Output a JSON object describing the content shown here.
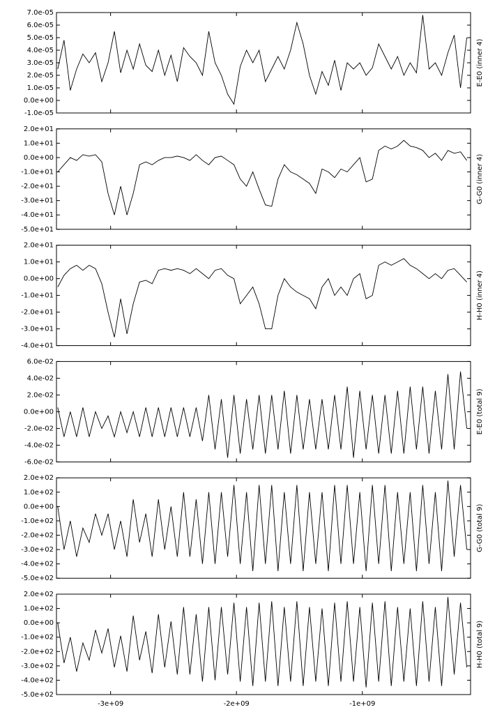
{
  "chart_data": [
    {
      "type": "line",
      "ylabel": "E-E0 (inner 4)",
      "color": "#000000",
      "x": [
        -3420000000.0,
        -3370000000.0,
        -3320000000.0,
        -3270000000.0,
        -3220000000.0,
        -3170000000.0,
        -3120000000.0,
        -3070000000.0,
        -3020000000.0,
        -2970000000.0,
        -2920000000.0,
        -2870000000.0,
        -2820000000.0,
        -2770000000.0,
        -2720000000.0,
        -2670000000.0,
        -2620000000.0,
        -2570000000.0,
        -2520000000.0,
        -2470000000.0,
        -2420000000.0,
        -2370000000.0,
        -2320000000.0,
        -2270000000.0,
        -2220000000.0,
        -2170000000.0,
        -2120000000.0,
        -2070000000.0,
        -2020000000.0,
        -1970000000.0,
        -1920000000.0,
        -1870000000.0,
        -1820000000.0,
        -1770000000.0,
        -1720000000.0,
        -1670000000.0,
        -1620000000.0,
        -1570000000.0,
        -1520000000.0,
        -1470000000.0,
        -1420000000.0,
        -1370000000.0,
        -1320000000.0,
        -1270000000.0,
        -1220000000.0,
        -1170000000.0,
        -1120000000.0,
        -1070000000.0,
        -1020000000.0,
        -970000000.0,
        -920000000.0,
        -870000000.0,
        -820000000.0,
        -770000000.0,
        -720000000.0,
        -670000000.0,
        -620000000.0,
        -570000000.0,
        -520000000.0,
        -470000000.0,
        -420000000.0,
        -370000000.0,
        -320000000.0,
        -270000000.0,
        -220000000.0,
        -170000000.0
      ],
      "values": [
        2.5e-05,
        4.8e-05,
        8e-06,
        2.5e-05,
        3.7e-05,
        3e-05,
        3.8e-05,
        1.5e-05,
        3e-05,
        5.5e-05,
        2.2e-05,
        4e-05,
        2.5e-05,
        4.5e-05,
        2.8e-05,
        2.3e-05,
        4e-05,
        2e-05,
        3.6e-05,
        1.5e-05,
        4.2e-05,
        3.5e-05,
        3e-05,
        2e-05,
        5.5e-05,
        3e-05,
        2e-05,
        5e-06,
        -3e-06,
        2.7e-05,
        4e-05,
        3e-05,
        4e-05,
        1.5e-05,
        2.5e-05,
        3.5e-05,
        2.5e-05,
        4e-05,
        6.2e-05,
        4.5e-05,
        2e-05,
        5e-06,
        2.3e-05,
        1.2e-05,
        3.2e-05,
        8e-06,
        3e-05,
        2.5e-05,
        3e-05,
        2e-05,
        2.6e-05,
        4.5e-05,
        3.5e-05,
        2.5e-05,
        3.5e-05,
        2e-05,
        3e-05,
        2.2e-05,
        6.8e-05,
        2.5e-05,
        3e-05,
        2e-05,
        3.8e-05,
        5.2e-05,
        1e-05,
        5e-05
      ],
      "xlim": [
        -3430000000.0,
        -140000000.0
      ],
      "ylim": [
        -1e-05,
        7e-05
      ],
      "yticks": [
        {
          "value": -1e-05,
          "label": "-1.0e-05"
        },
        {
          "value": 0,
          "label": "0.0e+00"
        },
        {
          "value": 1e-05,
          "label": "1.0e-05"
        },
        {
          "value": 2e-05,
          "label": "2.0e-05"
        },
        {
          "value": 3e-05,
          "label": "3.0e-05"
        },
        {
          "value": 4e-05,
          "label": "4.0e-05"
        },
        {
          "value": 5e-05,
          "label": "5.0e-05"
        },
        {
          "value": 6e-05,
          "label": "6.0e-05"
        },
        {
          "value": 7e-05,
          "label": "7.0e-05"
        }
      ]
    },
    {
      "type": "line",
      "ylabel": "G-G0 (inner 4)",
      "color": "#000000",
      "x": [
        -3420000000.0,
        -3370000000.0,
        -3320000000.0,
        -3270000000.0,
        -3220000000.0,
        -3170000000.0,
        -3120000000.0,
        -3070000000.0,
        -3020000000.0,
        -2970000000.0,
        -2920000000.0,
        -2870000000.0,
        -2820000000.0,
        -2770000000.0,
        -2720000000.0,
        -2670000000.0,
        -2620000000.0,
        -2570000000.0,
        -2520000000.0,
        -2470000000.0,
        -2420000000.0,
        -2370000000.0,
        -2320000000.0,
        -2270000000.0,
        -2220000000.0,
        -2170000000.0,
        -2120000000.0,
        -2070000000.0,
        -2020000000.0,
        -1970000000.0,
        -1920000000.0,
        -1870000000.0,
        -1820000000.0,
        -1770000000.0,
        -1720000000.0,
        -1670000000.0,
        -1620000000.0,
        -1570000000.0,
        -1520000000.0,
        -1470000000.0,
        -1420000000.0,
        -1370000000.0,
        -1320000000.0,
        -1270000000.0,
        -1220000000.0,
        -1170000000.0,
        -1120000000.0,
        -1070000000.0,
        -1020000000.0,
        -970000000.0,
        -920000000.0,
        -870000000.0,
        -820000000.0,
        -770000000.0,
        -720000000.0,
        -670000000.0,
        -620000000.0,
        -570000000.0,
        -520000000.0,
        -470000000.0,
        -420000000.0,
        -370000000.0,
        -320000000.0,
        -270000000.0,
        -220000000.0,
        -170000000.0
      ],
      "values": [
        -10,
        -5,
        0,
        -2,
        2,
        1,
        2,
        -3,
        -25,
        -40,
        -20,
        -40,
        -25,
        -5,
        -3,
        -5,
        -2,
        0,
        0,
        1,
        0,
        -2,
        2,
        -2,
        -5,
        0,
        1,
        -2,
        -5,
        -15,
        -20,
        -10,
        -22,
        -33,
        -34,
        -15,
        -5,
        -10,
        -12,
        -15,
        -18,
        -25,
        -8,
        -10,
        -14,
        -8,
        -10,
        -5,
        0,
        -17,
        -15,
        5,
        8,
        6,
        8,
        12,
        8,
        7,
        5,
        0,
        3,
        -2,
        5,
        3,
        4,
        -2
      ],
      "xlim": [
        -3430000000.0,
        -140000000.0
      ],
      "ylim": [
        -50,
        20
      ],
      "yticks": [
        {
          "value": -50,
          "label": "-5.0e+01"
        },
        {
          "value": -40,
          "label": "-4.0e+01"
        },
        {
          "value": -30,
          "label": "-3.0e+01"
        },
        {
          "value": -20,
          "label": "-2.0e+01"
        },
        {
          "value": -10,
          "label": "-1.0e+01"
        },
        {
          "value": 0,
          "label": "0.0e+00"
        },
        {
          "value": 10,
          "label": "1.0e+01"
        },
        {
          "value": 20,
          "label": "2.0e+01"
        }
      ]
    },
    {
      "type": "line",
      "ylabel": "H-H0 (inner 4)",
      "color": "#000000",
      "x": [
        -3420000000.0,
        -3370000000.0,
        -3320000000.0,
        -3270000000.0,
        -3220000000.0,
        -3170000000.0,
        -3120000000.0,
        -3070000000.0,
        -3020000000.0,
        -2970000000.0,
        -2920000000.0,
        -2870000000.0,
        -2820000000.0,
        -2770000000.0,
        -2720000000.0,
        -2670000000.0,
        -2620000000.0,
        -2570000000.0,
        -2520000000.0,
        -2470000000.0,
        -2420000000.0,
        -2370000000.0,
        -2320000000.0,
        -2270000000.0,
        -2220000000.0,
        -2170000000.0,
        -2120000000.0,
        -2070000000.0,
        -2020000000.0,
        -1970000000.0,
        -1920000000.0,
        -1870000000.0,
        -1820000000.0,
        -1770000000.0,
        -1720000000.0,
        -1670000000.0,
        -1620000000.0,
        -1570000000.0,
        -1520000000.0,
        -1470000000.0,
        -1420000000.0,
        -1370000000.0,
        -1320000000.0,
        -1270000000.0,
        -1220000000.0,
        -1170000000.0,
        -1120000000.0,
        -1070000000.0,
        -1020000000.0,
        -970000000.0,
        -920000000.0,
        -870000000.0,
        -820000000.0,
        -770000000.0,
        -720000000.0,
        -670000000.0,
        -620000000.0,
        -570000000.0,
        -520000000.0,
        -470000000.0,
        -420000000.0,
        -370000000.0,
        -320000000.0,
        -270000000.0,
        -220000000.0,
        -170000000.0
      ],
      "values": [
        -5,
        2,
        6,
        8,
        5,
        8,
        6,
        -3,
        -20,
        -35,
        -12,
        -33,
        -15,
        -2,
        -1,
        -3,
        5,
        6,
        5,
        6,
        5,
        3,
        6,
        3,
        0,
        5,
        6,
        2,
        0,
        -15,
        -10,
        -5,
        -15,
        -30,
        -30,
        -10,
        0,
        -5,
        -8,
        -10,
        -12,
        -18,
        -5,
        0,
        -10,
        -5,
        -10,
        0,
        3,
        -12,
        -10,
        8,
        10,
        8,
        10,
        12,
        8,
        6,
        3,
        0,
        3,
        0,
        5,
        6,
        2,
        -2
      ],
      "xlim": [
        -3430000000.0,
        -140000000.0
      ],
      "ylim": [
        -40,
        20
      ],
      "yticks": [
        {
          "value": -40,
          "label": "-4.0e+01"
        },
        {
          "value": -30,
          "label": "-3.0e+01"
        },
        {
          "value": -20,
          "label": "-2.0e+01"
        },
        {
          "value": -10,
          "label": "-1.0e+01"
        },
        {
          "value": 0,
          "label": "0.0e+00"
        },
        {
          "value": 10,
          "label": "1.0e+01"
        },
        {
          "value": 20,
          "label": "2.0e+01"
        }
      ]
    },
    {
      "type": "line",
      "ylabel": "E-E0 (total 9)",
      "color": "#000000",
      "x": [
        -3420000000.0,
        -3370000000.0,
        -3320000000.0,
        -3270000000.0,
        -3220000000.0,
        -3170000000.0,
        -3120000000.0,
        -3070000000.0,
        -3020000000.0,
        -2970000000.0,
        -2920000000.0,
        -2870000000.0,
        -2820000000.0,
        -2770000000.0,
        -2720000000.0,
        -2670000000.0,
        -2620000000.0,
        -2570000000.0,
        -2520000000.0,
        -2470000000.0,
        -2420000000.0,
        -2370000000.0,
        -2320000000.0,
        -2270000000.0,
        -2220000000.0,
        -2170000000.0,
        -2120000000.0,
        -2070000000.0,
        -2020000000.0,
        -1970000000.0,
        -1920000000.0,
        -1870000000.0,
        -1820000000.0,
        -1770000000.0,
        -1720000000.0,
        -1670000000.0,
        -1620000000.0,
        -1570000000.0,
        -1520000000.0,
        -1470000000.0,
        -1420000000.0,
        -1370000000.0,
        -1320000000.0,
        -1270000000.0,
        -1220000000.0,
        -1170000000.0,
        -1120000000.0,
        -1070000000.0,
        -1020000000.0,
        -970000000.0,
        -920000000.0,
        -870000000.0,
        -820000000.0,
        -770000000.0,
        -720000000.0,
        -670000000.0,
        -620000000.0,
        -570000000.0,
        -520000000.0,
        -470000000.0,
        -420000000.0,
        -370000000.0,
        -320000000.0,
        -270000000.0,
        -220000000.0,
        -170000000.0
      ],
      "values": [
        0.005,
        -0.03,
        0.0,
        -0.03,
        0.005,
        -0.03,
        0.0,
        -0.02,
        -0.005,
        -0.03,
        0.0,
        -0.025,
        0.0,
        -0.03,
        0.005,
        -0.03,
        0.005,
        -0.03,
        0.005,
        -0.03,
        0.005,
        -0.03,
        0.005,
        -0.035,
        0.02,
        -0.045,
        0.015,
        -0.055,
        0.02,
        -0.05,
        0.015,
        -0.045,
        0.02,
        -0.05,
        0.02,
        -0.045,
        0.025,
        -0.05,
        0.02,
        -0.045,
        0.015,
        -0.045,
        0.015,
        -0.045,
        0.02,
        -0.045,
        0.03,
        -0.055,
        0.025,
        -0.045,
        0.02,
        -0.05,
        0.02,
        -0.05,
        0.025,
        -0.05,
        0.03,
        -0.045,
        0.03,
        -0.05,
        0.025,
        -0.045,
        0.045,
        -0.045,
        0.048,
        -0.02
      ],
      "xlim": [
        -3430000000.0,
        -140000000.0
      ],
      "ylim": [
        -0.06,
        0.06
      ],
      "yticks": [
        {
          "value": -0.06,
          "label": "-6.0e-02"
        },
        {
          "value": -0.04,
          "label": "-4.0e-02"
        },
        {
          "value": -0.02,
          "label": "-2.0e-02"
        },
        {
          "value": 0,
          "label": "0.0e+00"
        },
        {
          "value": 0.02,
          "label": "2.0e-02"
        },
        {
          "value": 0.04,
          "label": "4.0e-02"
        },
        {
          "value": 0.06,
          "label": "6.0e-02"
        }
      ]
    },
    {
      "type": "line",
      "ylabel": "G-G0 (total 9)",
      "color": "#000000",
      "x": [
        -3420000000.0,
        -3370000000.0,
        -3320000000.0,
        -3270000000.0,
        -3220000000.0,
        -3170000000.0,
        -3120000000.0,
        -3070000000.0,
        -3020000000.0,
        -2970000000.0,
        -2920000000.0,
        -2870000000.0,
        -2820000000.0,
        -2770000000.0,
        -2720000000.0,
        -2670000000.0,
        -2620000000.0,
        -2570000000.0,
        -2520000000.0,
        -2470000000.0,
        -2420000000.0,
        -2370000000.0,
        -2320000000.0,
        -2270000000.0,
        -2220000000.0,
        -2170000000.0,
        -2120000000.0,
        -2070000000.0,
        -2020000000.0,
        -1970000000.0,
        -1920000000.0,
        -1870000000.0,
        -1820000000.0,
        -1770000000.0,
        -1720000000.0,
        -1670000000.0,
        -1620000000.0,
        -1570000000.0,
        -1520000000.0,
        -1470000000.0,
        -1420000000.0,
        -1370000000.0,
        -1320000000.0,
        -1270000000.0,
        -1220000000.0,
        -1170000000.0,
        -1120000000.0,
        -1070000000.0,
        -1020000000.0,
        -970000000.0,
        -920000000.0,
        -870000000.0,
        -820000000.0,
        -770000000.0,
        -720000000.0,
        -670000000.0,
        -620000000.0,
        -570000000.0,
        -520000000.0,
        -470000000.0,
        -420000000.0,
        -370000000.0,
        -320000000.0,
        -270000000.0,
        -220000000.0,
        -170000000.0
      ],
      "values": [
        0,
        -300,
        -100,
        -350,
        -150,
        -250,
        -50,
        -200,
        -50,
        -300,
        -100,
        -350,
        50,
        -250,
        -50,
        -350,
        50,
        -300,
        0,
        -350,
        100,
        -350,
        50,
        -400,
        100,
        -400,
        100,
        -350,
        150,
        -400,
        100,
        -450,
        150,
        -400,
        150,
        -450,
        100,
        -400,
        150,
        -450,
        100,
        -400,
        100,
        -450,
        150,
        -400,
        150,
        -400,
        100,
        -450,
        150,
        -400,
        150,
        -450,
        100,
        -400,
        100,
        -450,
        150,
        -400,
        100,
        -450,
        180,
        -350,
        150,
        -300
      ],
      "xlim": [
        -3430000000.0,
        -140000000.0
      ],
      "ylim": [
        -500,
        200
      ],
      "yticks": [
        {
          "value": -500,
          "label": "-5.0e+02"
        },
        {
          "value": -400,
          "label": "-4.0e+02"
        },
        {
          "value": -300,
          "label": "-3.0e+02"
        },
        {
          "value": -200,
          "label": "-2.0e+02"
        },
        {
          "value": -100,
          "label": "-1.0e+02"
        },
        {
          "value": 0,
          "label": "0.0e+00"
        },
        {
          "value": 100,
          "label": "1.0e+02"
        },
        {
          "value": 200,
          "label": "2.0e+02"
        }
      ]
    },
    {
      "type": "line",
      "ylabel": "H-H0 (total 9)",
      "color": "#000000",
      "x": [
        -3420000000.0,
        -3370000000.0,
        -3320000000.0,
        -3270000000.0,
        -3220000000.0,
        -3170000000.0,
        -3120000000.0,
        -3070000000.0,
        -3020000000.0,
        -2970000000.0,
        -2920000000.0,
        -2870000000.0,
        -2820000000.0,
        -2770000000.0,
        -2720000000.0,
        -2670000000.0,
        -2620000000.0,
        -2570000000.0,
        -2520000000.0,
        -2470000000.0,
        -2420000000.0,
        -2370000000.0,
        -2320000000.0,
        -2270000000.0,
        -2220000000.0,
        -2170000000.0,
        -2120000000.0,
        -2070000000.0,
        -2020000000.0,
        -1970000000.0,
        -1920000000.0,
        -1870000000.0,
        -1820000000.0,
        -1770000000.0,
        -1720000000.0,
        -1670000000.0,
        -1620000000.0,
        -1570000000.0,
        -1520000000.0,
        -1470000000.0,
        -1420000000.0,
        -1370000000.0,
        -1320000000.0,
        -1270000000.0,
        -1220000000.0,
        -1170000000.0,
        -1120000000.0,
        -1070000000.0,
        -1020000000.0,
        -970000000.0,
        -920000000.0,
        -870000000.0,
        -820000000.0,
        -770000000.0,
        -720000000.0,
        -670000000.0,
        -620000000.0,
        -570000000.0,
        -520000000.0,
        -470000000.0,
        -420000000.0,
        -370000000.0,
        -320000000.0,
        -270000000.0,
        -220000000.0,
        -170000000.0
      ],
      "values": [
        0,
        -280,
        -100,
        -340,
        -140,
        -260,
        -50,
        -210,
        -40,
        -310,
        -90,
        -340,
        50,
        -260,
        -60,
        -350,
        60,
        -310,
        10,
        -360,
        110,
        -360,
        60,
        -410,
        110,
        -400,
        110,
        -360,
        140,
        -410,
        110,
        -440,
        140,
        -410,
        150,
        -440,
        110,
        -410,
        150,
        -440,
        110,
        -410,
        100,
        -440,
        140,
        -410,
        150,
        -410,
        110,
        -450,
        140,
        -410,
        150,
        -440,
        110,
        -410,
        100,
        -440,
        150,
        -410,
        110,
        -440,
        180,
        -360,
        140,
        -310
      ],
      "xlim": [
        -3430000000.0,
        -140000000.0
      ],
      "ylim": [
        -500,
        200
      ],
      "yticks": [
        {
          "value": -500,
          "label": "-5.0e+02"
        },
        {
          "value": -400,
          "label": "-4.0e+02"
        },
        {
          "value": -300,
          "label": "-3.0e+02"
        },
        {
          "value": -200,
          "label": "-2.0e+02"
        },
        {
          "value": -100,
          "label": "-1.0e+02"
        },
        {
          "value": 0,
          "label": "0.0e+00"
        },
        {
          "value": 100,
          "label": "1.0e+02"
        },
        {
          "value": 200,
          "label": "2.0e+02"
        }
      ],
      "xticks": [
        {
          "value": -3000000000.0,
          "label": "-3e+09"
        },
        {
          "value": -2000000000.0,
          "label": "-2e+09"
        },
        {
          "value": -1000000000.0,
          "label": "-1e+09"
        }
      ]
    }
  ]
}
